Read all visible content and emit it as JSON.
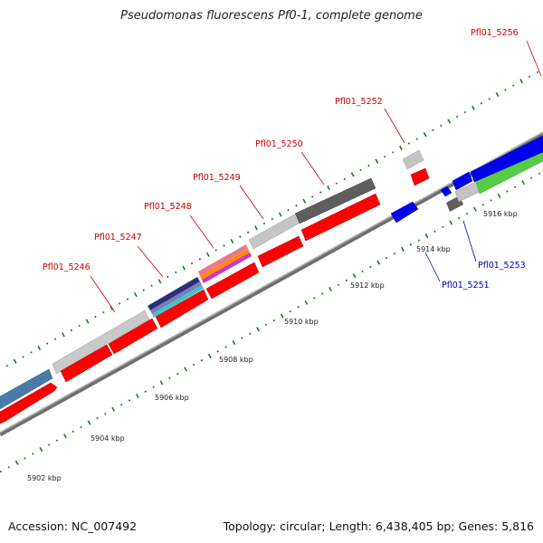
{
  "title": "Pseudomonas fluorescens Pf0-1, complete genome",
  "footer": {
    "accession": "Accession: NC_007492",
    "summary": "Topology: circular; Length: 6,438,405 bp; Genes: 5,816"
  },
  "colors": {
    "forward_label": "#cc0000",
    "reverse_label": "#0000bb",
    "backbone": "#808080",
    "tick": "#227722"
  },
  "scale_labels": [
    "5902 kbp",
    "5904 kbp",
    "5906 kbp",
    "5908 kbp",
    "5910 kbp",
    "5912 kbp",
    "5914 kbp",
    "5916 kbp"
  ],
  "gene_labels": [
    {
      "id": "Pfl01_5246",
      "strand": "forward"
    },
    {
      "id": "Pfl01_5247",
      "strand": "forward"
    },
    {
      "id": "Pfl01_5248",
      "strand": "forward"
    },
    {
      "id": "Pfl01_5249",
      "strand": "forward"
    },
    {
      "id": "Pfl01_5250",
      "strand": "forward"
    },
    {
      "id": "Pfl01_5252",
      "strand": "forward"
    },
    {
      "id": "Pfl01_5256",
      "strand": "forward"
    },
    {
      "id": "Pfl01_5251",
      "strand": "reverse"
    },
    {
      "id": "Pfl01_5253",
      "strand": "reverse"
    }
  ]
}
